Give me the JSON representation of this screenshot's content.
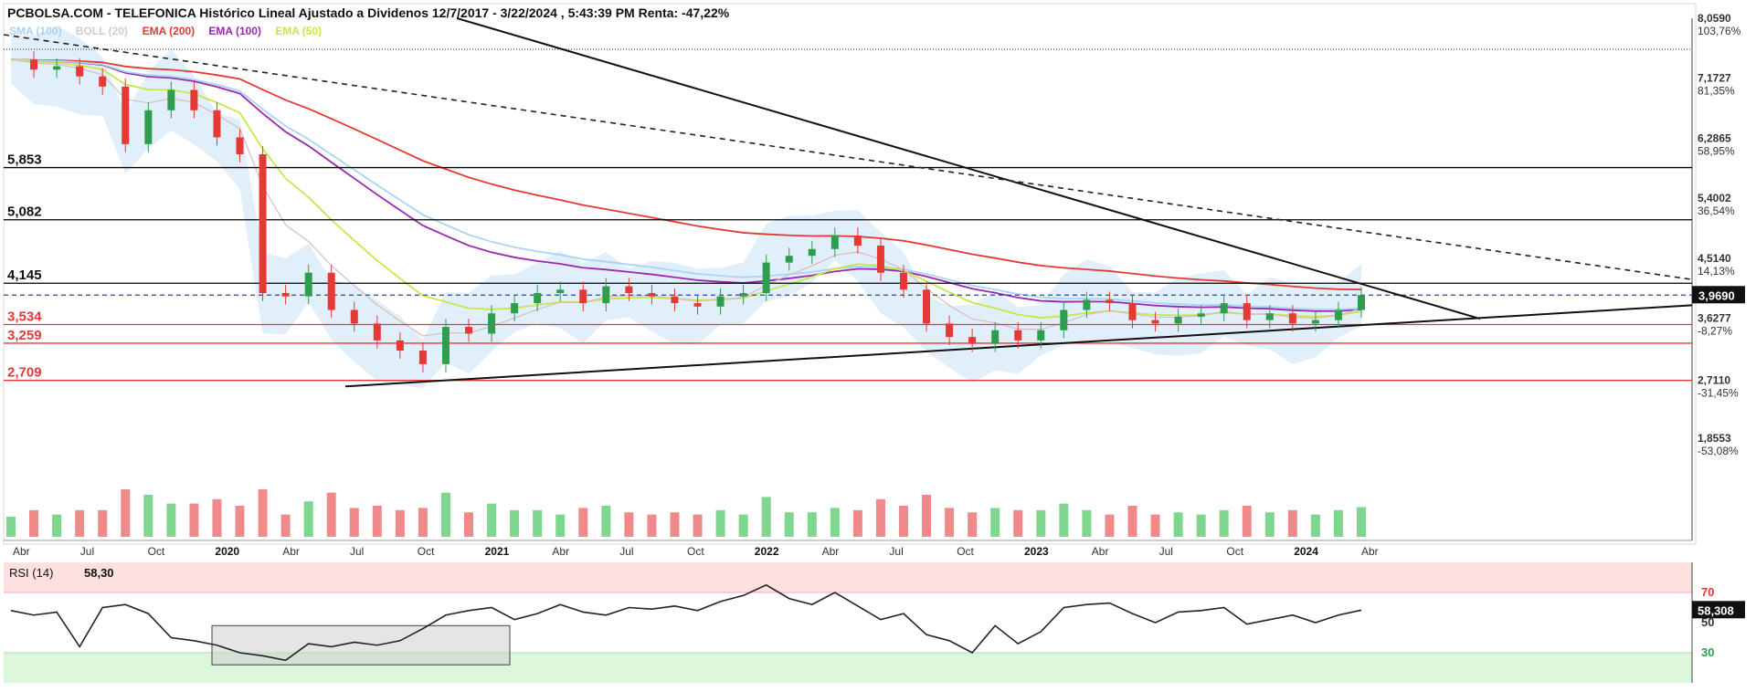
{
  "header": {
    "title": "PCBOLSA.COM - TELEFONICA Histórico Lineal Ajustado a Dividenos 12/7/2017 - 3/22/2024 , 5:43:39 PM Renta: -47,22%"
  },
  "legend": [
    {
      "label": "SMA (100)",
      "color": "#a9d4f5"
    },
    {
      "label": "BOLL (20)",
      "color": "#cccccc"
    },
    {
      "label": "EMA (200)",
      "color": "#e53935"
    },
    {
      "label": "EMA (100)",
      "color": "#9c27b0"
    },
    {
      "label": "EMA (50)",
      "color": "#c6e84a"
    }
  ],
  "levels": [
    {
      "label": "5,853",
      "value": 5.853,
      "color": "#111111",
      "line": "#000000"
    },
    {
      "label": "5,082",
      "value": 5.082,
      "color": "#111111",
      "line": "#000000"
    },
    {
      "label": "4,145",
      "value": 4.145,
      "color": "#111111",
      "line": "#000000"
    },
    {
      "label": "3,534",
      "value": 3.534,
      "color": "#e53935",
      "line": "#e53935"
    },
    {
      "label": "3,259",
      "value": 3.259,
      "color": "#e53935",
      "line": "#e53935"
    },
    {
      "label": "2,709",
      "value": 2.709,
      "color": "#e53935",
      "line": "#e53935"
    }
  ],
  "price_axis": [
    {
      "value": "8,0590",
      "pct": "103,76%",
      "pctColor": "#2e9e4e"
    },
    {
      "value": "7,1727",
      "pct": "81,35%",
      "pctColor": "#2e9e4e"
    },
    {
      "value": "6,2865",
      "pct": "58,95%",
      "pctColor": "#2e9e4e"
    },
    {
      "value": "5,4002",
      "pct": "36,54%",
      "pctColor": "#2e9e4e"
    },
    {
      "value": "4,5140",
      "pct": "14,13%",
      "pctColor": "#2e9e4e"
    },
    {
      "value": "3,6277",
      "pct": "-8,27%",
      "pctColor": "#e53935"
    },
    {
      "value": "2,7110",
      "pct": "-31,45%",
      "pctColor": "#e53935"
    },
    {
      "value": "1,8553",
      "pct": "-53,08%",
      "pctColor": "#e53935"
    }
  ],
  "current_price": {
    "value": "3,9690"
  },
  "x_axis": [
    {
      "label": "Abr",
      "bold": false
    },
    {
      "label": "Jul",
      "bold": false
    },
    {
      "label": "Oct",
      "bold": false
    },
    {
      "label": "2020",
      "bold": true
    },
    {
      "label": "Abr",
      "bold": false
    },
    {
      "label": "Jul",
      "bold": false
    },
    {
      "label": "Oct",
      "bold": false
    },
    {
      "label": "2021",
      "bold": true
    },
    {
      "label": "Abr",
      "bold": false
    },
    {
      "label": "Jul",
      "bold": false
    },
    {
      "label": "Oct",
      "bold": false
    },
    {
      "label": "2022",
      "bold": true
    },
    {
      "label": "Abr",
      "bold": false
    },
    {
      "label": "Jul",
      "bold": false
    },
    {
      "label": "Oct",
      "bold": false
    },
    {
      "label": "2023",
      "bold": true
    },
    {
      "label": "Abr",
      "bold": false
    },
    {
      "label": "Jul",
      "bold": false
    },
    {
      "label": "Oct",
      "bold": false
    },
    {
      "label": "2024",
      "bold": true
    },
    {
      "label": "Abr",
      "bold": false
    }
  ],
  "rsi": {
    "label": "RSI (14)",
    "value": "58,30",
    "current": "58,308",
    "level_high": "70",
    "level_mid": "50",
    "level_low": "30"
  },
  "chart_data": {
    "type": "line",
    "title": "PCBOLSA.COM - TELEFONICA Histórico Lineal Ajustado a Dividenos 12/7/2017 - 3/22/2024 , 5:43:39 PM Renta: -47,22%",
    "ylim": [
      1.8553,
      8.059
    ],
    "x": [
      "2019-04",
      "2019-05",
      "2019-06",
      "2019-07",
      "2019-08",
      "2019-09",
      "2019-10",
      "2019-11",
      "2019-12",
      "2020-01",
      "2020-02",
      "2020-03",
      "2020-04",
      "2020-05",
      "2020-06",
      "2020-07",
      "2020-08",
      "2020-09",
      "2020-10",
      "2020-11",
      "2020-12",
      "2021-01",
      "2021-02",
      "2021-03",
      "2021-04",
      "2021-05",
      "2021-06",
      "2021-07",
      "2021-08",
      "2021-09",
      "2021-10",
      "2021-11",
      "2021-12",
      "2022-01",
      "2022-02",
      "2022-03",
      "2022-04",
      "2022-05",
      "2022-06",
      "2022-07",
      "2022-08",
      "2022-09",
      "2022-10",
      "2022-11",
      "2022-12",
      "2023-01",
      "2023-02",
      "2023-03",
      "2023-04",
      "2023-05",
      "2023-06",
      "2023-07",
      "2023-08",
      "2023-09",
      "2023-10",
      "2023-11",
      "2023-12",
      "2024-01",
      "2024-02",
      "2024-03"
    ],
    "series": [
      {
        "values": [
          7.45,
          7.3,
          7.35,
          7.2,
          7.05,
          6.2,
          6.7,
          7.0,
          6.7,
          6.3,
          6.05,
          4.0,
          3.95,
          4.3,
          3.75,
          3.55,
          3.3,
          3.15,
          2.95,
          3.5,
          3.4,
          3.7,
          3.85,
          4.0,
          4.05,
          3.85,
          4.1,
          4.0,
          3.95,
          3.85,
          3.8,
          3.95,
          4.0,
          4.45,
          4.55,
          4.65,
          4.85,
          4.7,
          4.3,
          4.05,
          3.55,
          3.35,
          3.25,
          3.45,
          3.3,
          3.45,
          3.75,
          3.9,
          3.85,
          3.6,
          3.55,
          3.65,
          3.7,
          3.85,
          3.6,
          3.7,
          3.55,
          3.6,
          3.75,
          3.969
        ]
      }
    ],
    "rsi": [
      58,
      55,
      57,
      34,
      60,
      62,
      56,
      40,
      38,
      35,
      30,
      28,
      25,
      36,
      34,
      37,
      35,
      38,
      46,
      55,
      58,
      60,
      52,
      56,
      62,
      57,
      55,
      60,
      59,
      61,
      58,
      64,
      68,
      75,
      66,
      62,
      70,
      61,
      52,
      56,
      42,
      38,
      30,
      48,
      36,
      44,
      60,
      62,
      63,
      56,
      50,
      57,
      58,
      60,
      49,
      52,
      55,
      50,
      55,
      58.308
    ]
  }
}
